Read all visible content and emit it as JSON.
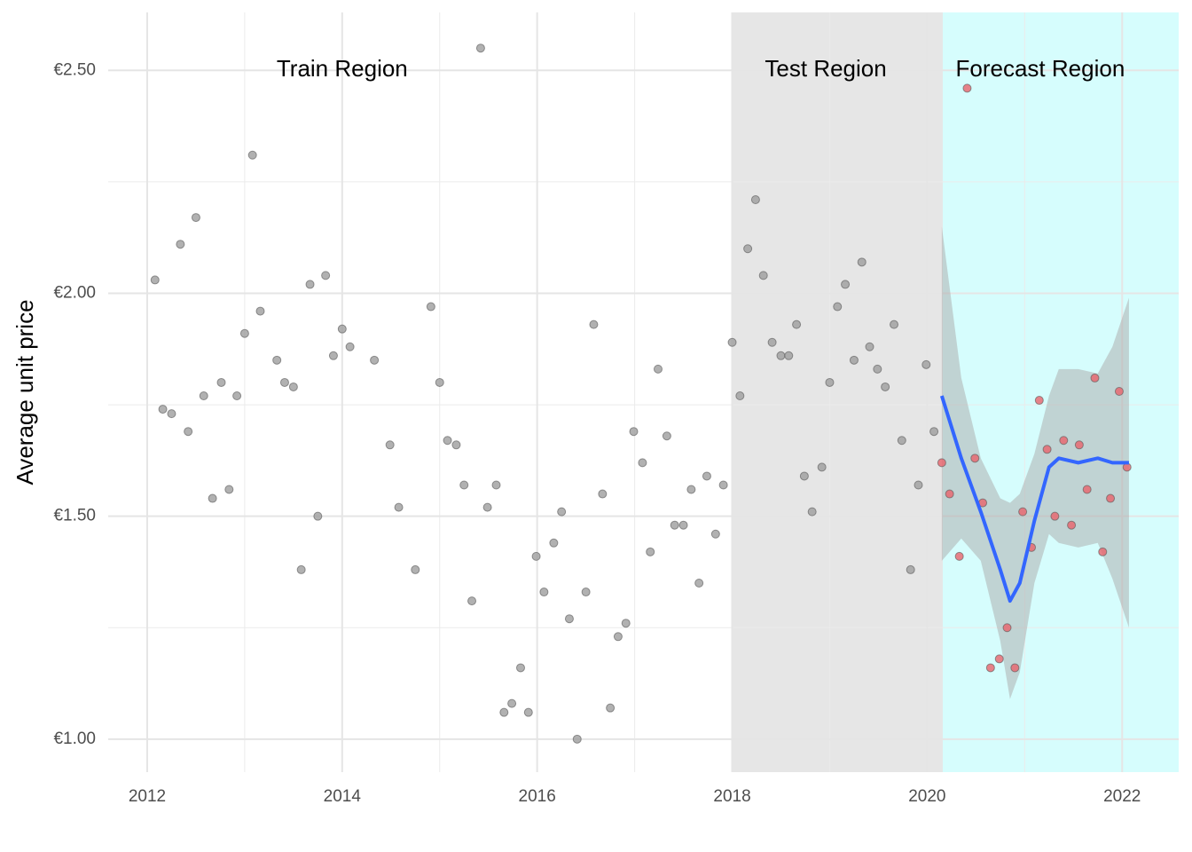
{
  "chart_data": {
    "type": "scatter",
    "y_label": "Average unit price",
    "xlim": [
      2011.6,
      2022.58
    ],
    "ylim": [
      0.926,
      2.63
    ],
    "xticks": [
      2012,
      2014,
      2016,
      2018,
      2020,
      2022
    ],
    "yticks": [
      {
        "value": 1.0,
        "label": "€1.00"
      },
      {
        "value": 1.5,
        "label": "€1.50"
      },
      {
        "value": 2.0,
        "label": "€2.00"
      },
      {
        "value": 2.5,
        "label": "€2.50"
      }
    ],
    "grid": true,
    "minor_grid": true,
    "regions": [
      {
        "xlim": [
          2018.0,
          2020.16
        ],
        "color": "#e6e6e6"
      },
      {
        "xlim": [
          2020.16,
          2022.58
        ],
        "color": "#d6fdfd"
      }
    ],
    "annotations": [
      {
        "text": "Train Region",
        "x": 2014.0,
        "y": 2.5
      },
      {
        "text": "Test Region",
        "x": 2018.96,
        "y": 2.5
      },
      {
        "text": "Forecast Region",
        "x": 2021.16,
        "y": 2.5
      }
    ],
    "series": [
      {
        "color": "#9e9e9e",
        "x": [
          2012.08,
          2012.16,
          2012.25,
          2012.34,
          2012.42,
          2012.5,
          2012.58,
          2012.67,
          2012.76,
          2012.84,
          2012.92,
          2013.0,
          2013.08,
          2013.16,
          2013.33,
          2013.41,
          2013.5,
          2013.58,
          2013.67,
          2013.75,
          2013.83,
          2013.91,
          2014.0,
          2014.08,
          2014.33,
          2014.49,
          2014.58,
          2014.75,
          2014.91,
          2015.0,
          2015.08,
          2015.17,
          2015.25,
          2015.33,
          2015.42,
          2015.49,
          2015.58,
          2015.66,
          2015.74,
          2015.83,
          2015.91,
          2015.99,
          2016.07,
          2016.17,
          2016.25,
          2016.33,
          2016.41,
          2016.5,
          2016.58,
          2016.67,
          2016.75,
          2016.83,
          2016.91,
          2016.99,
          2017.08,
          2017.16,
          2017.24,
          2017.33,
          2017.41,
          2017.5,
          2017.58,
          2017.66,
          2017.74,
          2017.83,
          2017.91
        ],
        "values": [
          2.03,
          1.74,
          1.73,
          2.11,
          1.69,
          2.17,
          1.77,
          1.54,
          1.8,
          1.56,
          1.77,
          1.91,
          2.31,
          1.96,
          1.85,
          1.8,
          1.79,
          1.38,
          2.02,
          1.5,
          2.04,
          1.86,
          1.92,
          1.88,
          1.85,
          1.66,
          1.52,
          1.38,
          1.97,
          1.8,
          1.67,
          1.66,
          1.57,
          1.31,
          2.55,
          1.52,
          1.57,
          1.06,
          1.08,
          1.16,
          1.06,
          1.41,
          1.33,
          1.44,
          1.51,
          1.27,
          1.0,
          1.33,
          1.93,
          1.55,
          1.07,
          1.23,
          1.26,
          1.69,
          1.62,
          1.42,
          1.83,
          1.68,
          1.48,
          1.48,
          1.56,
          1.35,
          1.59,
          1.46,
          1.57
        ]
      },
      {
        "color": "#9e9e9e",
        "x": [
          2018.0,
          2018.08,
          2018.16,
          2018.24,
          2018.32,
          2018.41,
          2018.5,
          2018.58,
          2018.66,
          2018.74,
          2018.82,
          2018.92,
          2019.0,
          2019.08,
          2019.16,
          2019.25,
          2019.33,
          2019.41,
          2019.49,
          2019.57,
          2019.66,
          2019.74,
          2019.83,
          2019.91,
          2019.99,
          2020.07
        ],
        "values": [
          1.89,
          1.77,
          2.1,
          2.21,
          2.04,
          1.89,
          1.86,
          1.86,
          1.93,
          1.59,
          1.51,
          1.61,
          1.8,
          1.97,
          2.02,
          1.85,
          2.07,
          1.88,
          1.83,
          1.79,
          1.93,
          1.67,
          1.38,
          1.57,
          1.84,
          1.69
        ]
      },
      {
        "color": "#e8636b",
        "x": [
          2020.15,
          2020.23,
          2020.33,
          2020.41,
          2020.49,
          2020.57,
          2020.65,
          2020.74,
          2020.82,
          2020.9,
          2020.98,
          2021.07,
          2021.15,
          2021.23,
          2021.31,
          2021.4,
          2021.48,
          2021.56,
          2021.64,
          2021.72,
          2021.8,
          2021.88,
          2021.97,
          2022.05
        ],
        "values": [
          1.62,
          1.55,
          1.41,
          2.46,
          1.63,
          1.53,
          1.16,
          1.18,
          1.25,
          1.16,
          1.51,
          1.43,
          1.76,
          1.65,
          1.5,
          1.67,
          1.48,
          1.66,
          1.56,
          1.81,
          1.42,
          1.54,
          1.78,
          1.61
        ]
      }
    ],
    "smooth": {
      "color": "#3366ff",
      "band_color": "#a9a9a9",
      "x": [
        2020.15,
        2020.35,
        2020.55,
        2020.75,
        2020.85,
        2020.95,
        2021.1,
        2021.25,
        2021.35,
        2021.55,
        2021.75,
        2021.9,
        2022.07
      ],
      "values": [
        1.77,
        1.63,
        1.51,
        1.38,
        1.31,
        1.35,
        1.49,
        1.61,
        1.63,
        1.62,
        1.63,
        1.62,
        1.62
      ],
      "lower": [
        1.4,
        1.45,
        1.4,
        1.22,
        1.09,
        1.15,
        1.35,
        1.46,
        1.44,
        1.43,
        1.44,
        1.36,
        1.25
      ],
      "upper": [
        2.15,
        1.81,
        1.63,
        1.54,
        1.53,
        1.55,
        1.64,
        1.77,
        1.83,
        1.83,
        1.82,
        1.88,
        1.99
      ]
    }
  }
}
